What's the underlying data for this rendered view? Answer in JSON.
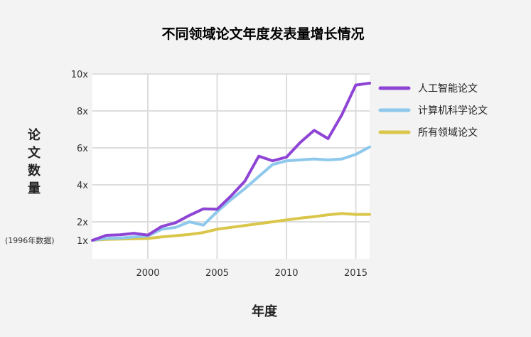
{
  "chart_data": {
    "type": "line",
    "title": "不同领域论文年度发表量增长情况",
    "xlabel": "年度",
    "ylabel": "论文数量",
    "baseline_note": "(1996年数据)",
    "xlim": [
      1996,
      2016
    ],
    "ylim": [
      0,
      10
    ],
    "x_ticks": [
      2000,
      2005,
      2010,
      2015
    ],
    "y_ticks": [
      {
        "value": 1,
        "label": "1x"
      },
      {
        "value": 2,
        "label": "2x"
      },
      {
        "value": 4,
        "label": "4x"
      },
      {
        "value": 6,
        "label": "6x"
      },
      {
        "value": 8,
        "label": "8x"
      },
      {
        "value": 10,
        "label": "10x"
      }
    ],
    "grid": true,
    "legend_position": "right",
    "x": [
      1996,
      1997,
      1998,
      1999,
      2000,
      2001,
      2002,
      2003,
      2004,
      2005,
      2006,
      2007,
      2008,
      2009,
      2010,
      2011,
      2012,
      2013,
      2014,
      2015,
      2016
    ],
    "series": [
      {
        "name": "人工智能论文",
        "color": "#8e44d4",
        "values": [
          1.0,
          1.27,
          1.3,
          1.38,
          1.28,
          1.75,
          1.95,
          2.35,
          2.7,
          2.68,
          3.4,
          4.2,
          5.55,
          5.3,
          5.5,
          6.3,
          6.95,
          6.5,
          7.8,
          9.4,
          9.5
        ]
      },
      {
        "name": "计算机科学论文",
        "color": "#8ec8ec",
        "values": [
          1.0,
          1.1,
          1.12,
          1.18,
          1.23,
          1.6,
          1.7,
          2.0,
          1.82,
          2.55,
          3.2,
          3.8,
          4.45,
          5.1,
          5.3,
          5.35,
          5.4,
          5.35,
          5.4,
          5.65,
          6.05
        ]
      },
      {
        "name": "所有领域论文",
        "color": "#d9c64a",
        "values": [
          1.0,
          1.05,
          1.07,
          1.08,
          1.1,
          1.18,
          1.25,
          1.32,
          1.42,
          1.6,
          1.7,
          1.8,
          1.9,
          2.0,
          2.1,
          2.2,
          2.28,
          2.38,
          2.45,
          2.4,
          2.4
        ]
      }
    ]
  }
}
